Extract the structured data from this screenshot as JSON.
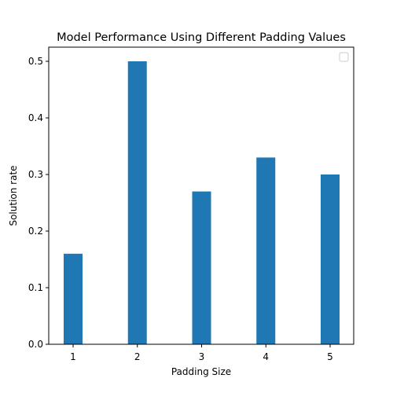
{
  "chart_data": {
    "type": "bar",
    "title": "Model Performance Using Different Padding Values",
    "xlabel": "Padding Size",
    "ylabel": "Solution rate",
    "categories": [
      "1",
      "2",
      "3",
      "4",
      "5"
    ],
    "values": [
      0.16,
      0.5,
      0.27,
      0.33,
      0.3
    ],
    "ylim": [
      0,
      0.525
    ],
    "yticks": [
      "0.0",
      "0.1",
      "0.2",
      "0.3",
      "0.4",
      "0.5"
    ],
    "bar_color": "#1f77b4",
    "grid": false,
    "legend": {
      "placement": "top-right",
      "entries": []
    }
  }
}
